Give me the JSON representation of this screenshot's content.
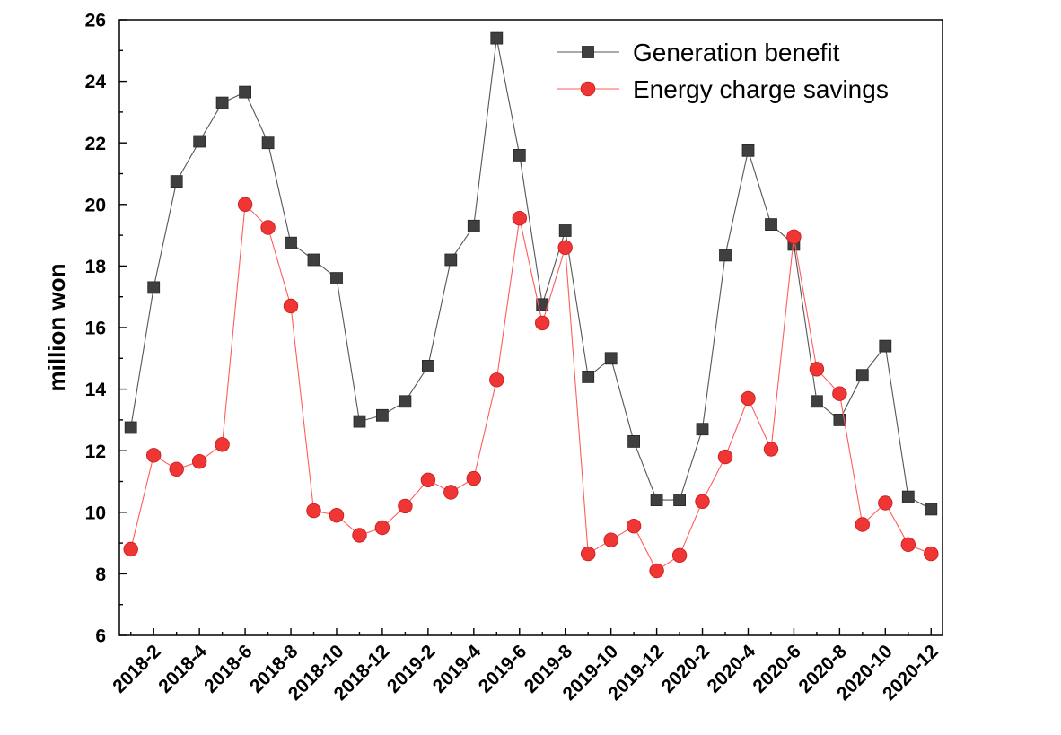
{
  "chart_data": {
    "type": "line",
    "title": "",
    "xlabel": "",
    "ylabel": "million won",
    "xlim": [
      0.5,
      36.5
    ],
    "ylim": [
      6,
      26
    ],
    "yticks": [
      6,
      8,
      10,
      12,
      14,
      16,
      18,
      20,
      22,
      24,
      26
    ],
    "x": [
      1,
      2,
      3,
      4,
      5,
      6,
      7,
      8,
      9,
      10,
      11,
      12,
      13,
      14,
      15,
      16,
      17,
      18,
      19,
      20,
      21,
      22,
      23,
      24,
      25,
      26,
      27,
      28,
      29,
      30,
      31,
      32,
      33,
      34,
      35,
      36
    ],
    "xticks": [
      {
        "x": 2,
        "label": "2018-2"
      },
      {
        "x": 4,
        "label": "2018-4"
      },
      {
        "x": 6,
        "label": "2018-6"
      },
      {
        "x": 8,
        "label": "2018-8"
      },
      {
        "x": 10,
        "label": "2018-10"
      },
      {
        "x": 12,
        "label": "2018-12"
      },
      {
        "x": 14,
        "label": "2019-2"
      },
      {
        "x": 16,
        "label": "2019-4"
      },
      {
        "x": 18,
        "label": "2019-6"
      },
      {
        "x": 20,
        "label": "2019-8"
      },
      {
        "x": 22,
        "label": "2019-10"
      },
      {
        "x": 24,
        "label": "2019-12"
      },
      {
        "x": 26,
        "label": "2020-2"
      },
      {
        "x": 28,
        "label": "2020-4"
      },
      {
        "x": 30,
        "label": "2020-6"
      },
      {
        "x": 32,
        "label": "2020-8"
      },
      {
        "x": 34,
        "label": "2020-10"
      },
      {
        "x": 36,
        "label": "2020-12"
      }
    ],
    "series": [
      {
        "name": "Generation benefit",
        "color": "#3f3f3f",
        "line_color": "#555555",
        "values": [
          12.75,
          17.3,
          20.75,
          22.05,
          23.3,
          23.65,
          22.0,
          18.75,
          18.2,
          17.6,
          12.95,
          13.15,
          13.6,
          14.75,
          18.2,
          19.3,
          25.4,
          21.6,
          16.75,
          19.15,
          14.4,
          15.0,
          12.3,
          10.4,
          10.4,
          12.7,
          18.35,
          21.75,
          19.35,
          18.7,
          13.6,
          13.0,
          14.45,
          15.4,
          10.5,
          10.1
        ]
      },
      {
        "name": "Energy charge savings",
        "color": "#f03535",
        "line_color": "#ff5c5c",
        "values": [
          8.8,
          11.85,
          11.4,
          11.65,
          12.2,
          20.0,
          19.25,
          16.7,
          10.05,
          9.9,
          9.25,
          9.5,
          10.2,
          11.05,
          10.65,
          11.1,
          14.3,
          19.55,
          16.15,
          18.6,
          8.65,
          9.1,
          9.55,
          8.1,
          8.6,
          10.35,
          11.8,
          13.7,
          12.05,
          18.95,
          14.65,
          13.85,
          9.6,
          10.3,
          8.95,
          8.65
        ]
      }
    ],
    "legend": "top-right",
    "grid": false
  }
}
